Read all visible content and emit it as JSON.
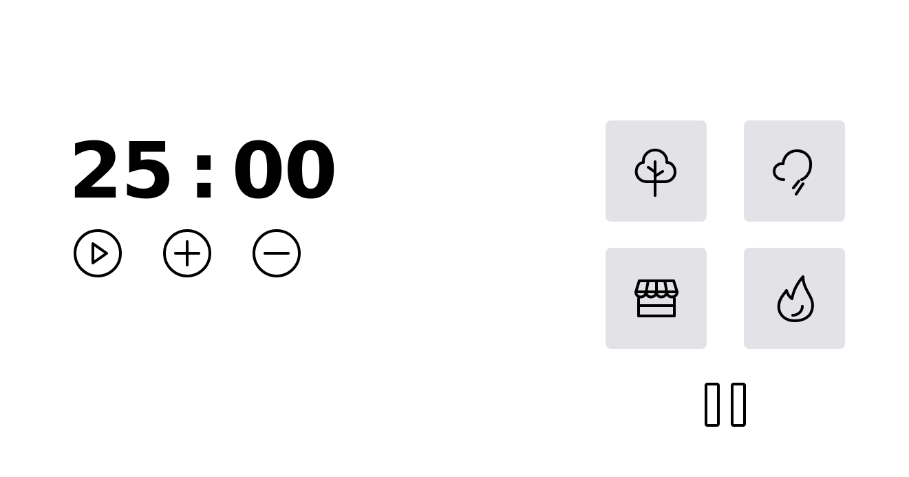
{
  "timer": {
    "minutes": "25",
    "separator": ":",
    "seconds": "00"
  },
  "controls": {
    "play_icon": "play-circle-icon",
    "increase_icon": "plus-circle-icon",
    "decrease_icon": "minus-circle-icon"
  },
  "sounds": [
    {
      "icon": "tree-icon"
    },
    {
      "icon": "rain-cloud-icon"
    },
    {
      "icon": "storefront-icon"
    },
    {
      "icon": "fire-icon"
    }
  ],
  "playback": {
    "pause_icon": "pause-icon"
  },
  "colors": {
    "background": "#ffffff",
    "tile": "#e3e3e7",
    "foreground": "#000000"
  }
}
